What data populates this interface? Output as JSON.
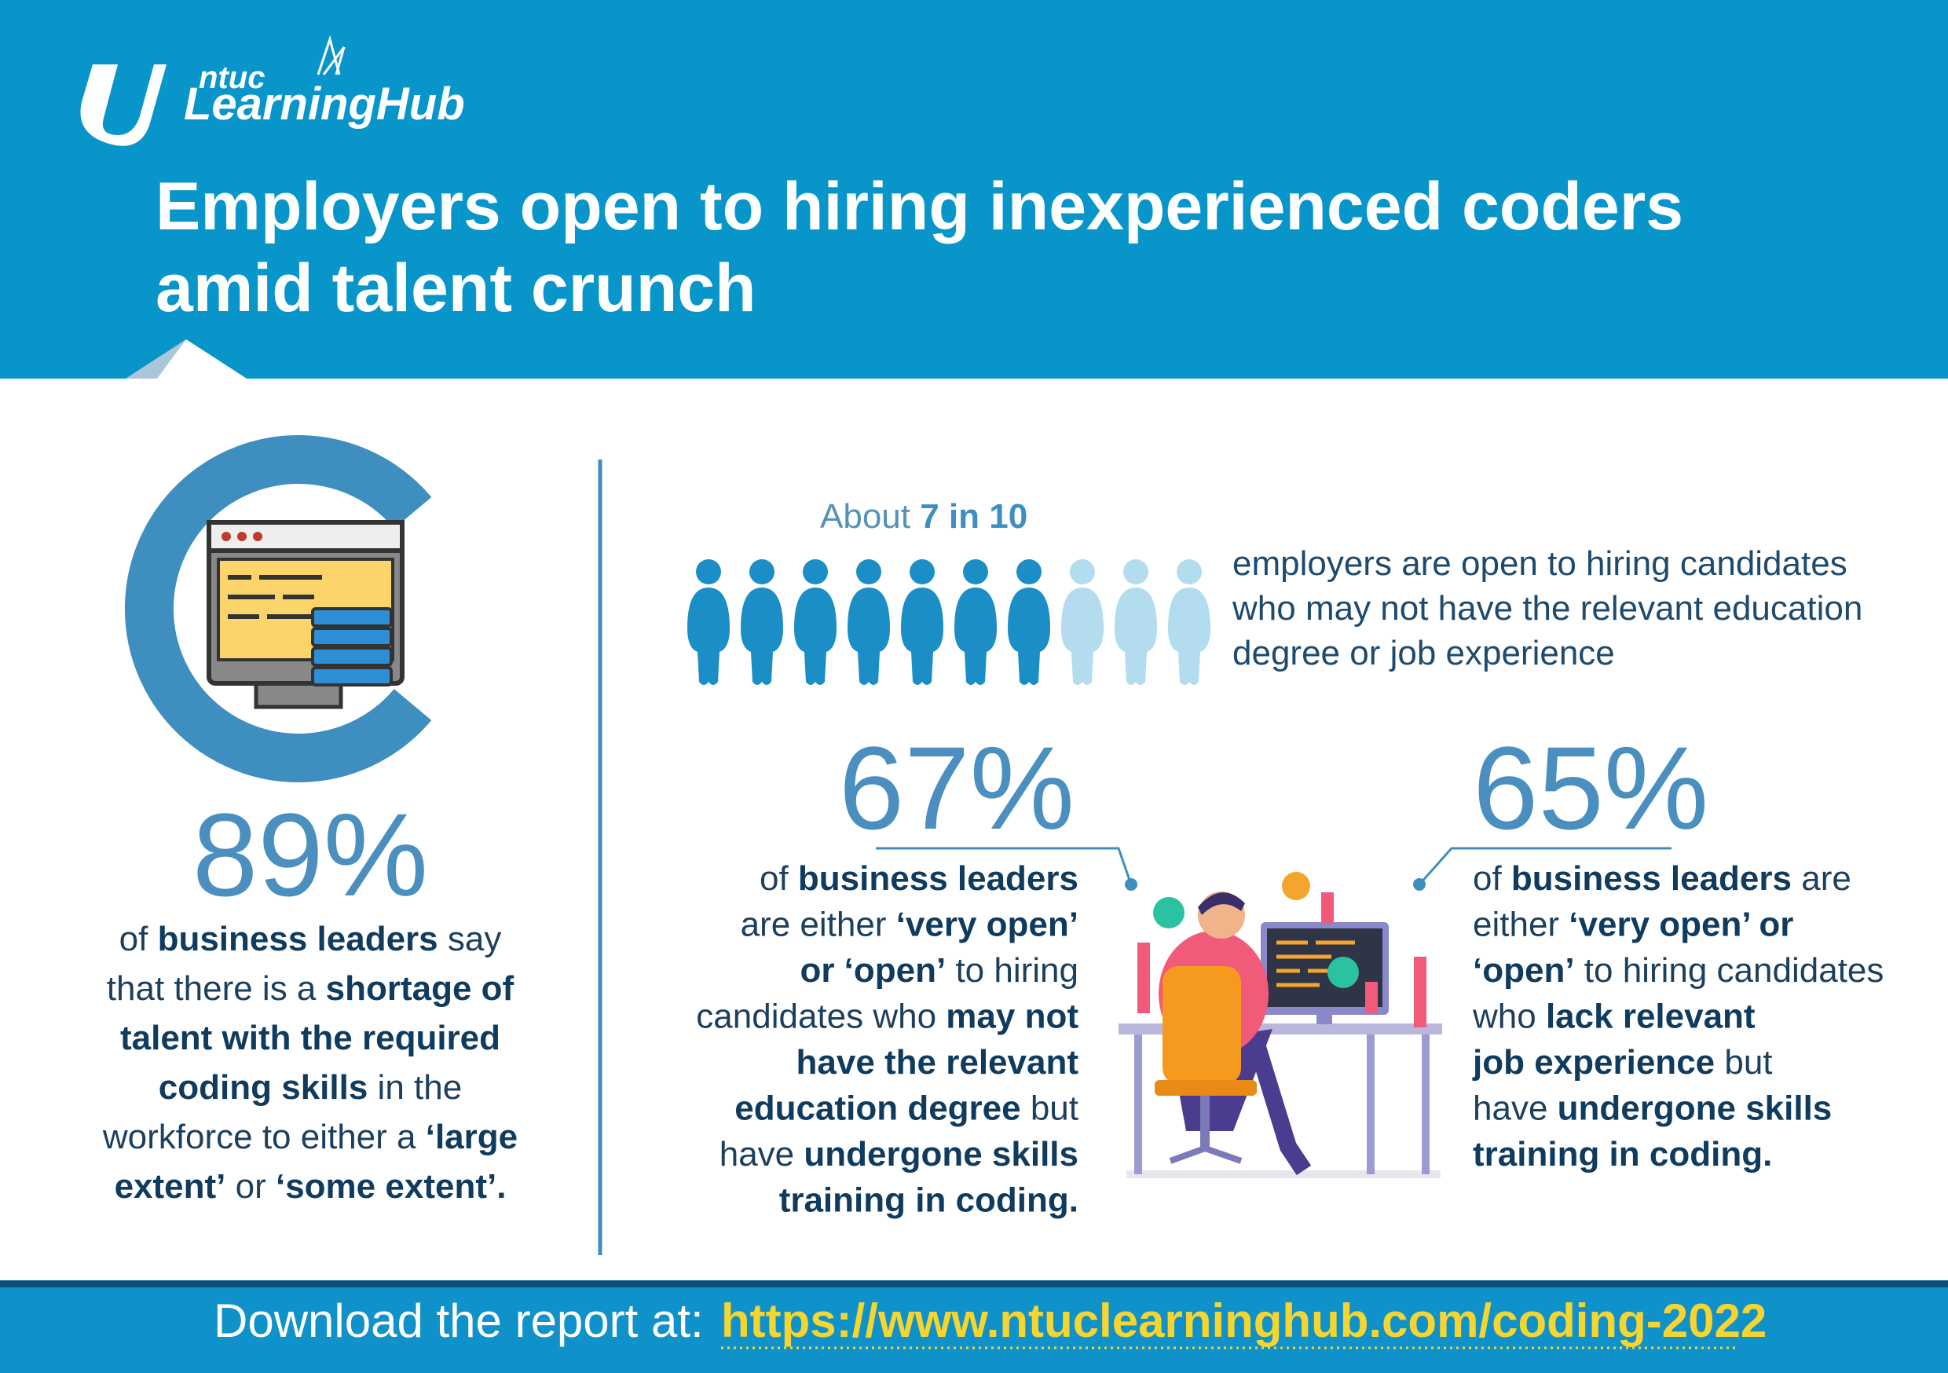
{
  "header": {
    "logo": {
      "brand": "ntuc",
      "product": "LearningHub"
    },
    "title": [
      "Employers open to hiring inexperienced coders",
      "amid talent crunch"
    ]
  },
  "shortage": {
    "stat": "89%",
    "lines": [
      [
        {
          "text": "of "
        },
        {
          "text": "business leaders",
          "bold": true
        },
        {
          "text": " say"
        }
      ],
      [
        {
          "text": "that there is a "
        },
        {
          "text": "shortage of",
          "bold": true
        }
      ],
      [
        {
          "text": "talent with the required",
          "bold": true
        }
      ],
      [
        {
          "text": "coding skills",
          "bold": true
        },
        {
          "text": " in the"
        }
      ],
      [
        {
          "text": "workforce to either a "
        },
        {
          "text": "‘large",
          "bold": true
        }
      ],
      [
        {
          "text": "extent’",
          "bold": true
        },
        {
          "text": " or "
        },
        {
          "text": "‘some extent’.",
          "bold": true
        }
      ]
    ]
  },
  "openness": {
    "intro": [
      {
        "text": "About "
      },
      {
        "text": "7 in 10",
        "bold": true
      }
    ],
    "icons": {
      "filled": 7,
      "total": 10
    },
    "lines": [
      [
        {
          "text": "employers are open to hiring candidates"
        }
      ],
      [
        {
          "text": "who may not have the relevant education"
        }
      ],
      [
        {
          "text": "degree or job experience"
        }
      ]
    ]
  },
  "education": {
    "stat": "67%",
    "lines": [
      [
        {
          "text": "of "
        },
        {
          "text": "business leaders",
          "bold": true
        }
      ],
      [
        {
          "text": "are either "
        },
        {
          "text": "‘very open’",
          "bold": true
        }
      ],
      [
        {
          "text": "or ‘open’",
          "bold": true
        },
        {
          "text": " to hiring"
        }
      ],
      [
        {
          "text": "candidates who "
        },
        {
          "text": "may not",
          "bold": true
        }
      ],
      [
        {
          "text": "have the relevant",
          "bold": true
        }
      ],
      [
        {
          "text": "education degree",
          "bold": true
        },
        {
          "text": " but"
        }
      ],
      [
        {
          "text": "have "
        },
        {
          "text": "undergone skills",
          "bold": true
        }
      ],
      [
        {
          "text": "training in coding.",
          "bold": true
        }
      ]
    ]
  },
  "experience": {
    "stat": "65%",
    "lines": [
      [
        {
          "text": "of "
        },
        {
          "text": "business leaders",
          "bold": true
        },
        {
          "text": " are"
        }
      ],
      [
        {
          "text": "either "
        },
        {
          "text": "‘very open’ or",
          "bold": true
        }
      ],
      [
        {
          "text": "‘open’",
          "bold": true
        },
        {
          "text": " to hiring candidates"
        }
      ],
      [
        {
          "text": "who "
        },
        {
          "text": "lack relevant",
          "bold": true
        }
      ],
      [
        {
          "text": "job experience",
          "bold": true
        },
        {
          "text": " but"
        }
      ],
      [
        {
          "text": "have "
        },
        {
          "text": "undergone skills",
          "bold": true
        }
      ],
      [
        {
          "text": "training in coding.",
          "bold": true
        }
      ]
    ]
  },
  "footer": {
    "label": "Download the report at:",
    "link": "https://www.ntuclearninghub.com/coding-2022"
  }
}
